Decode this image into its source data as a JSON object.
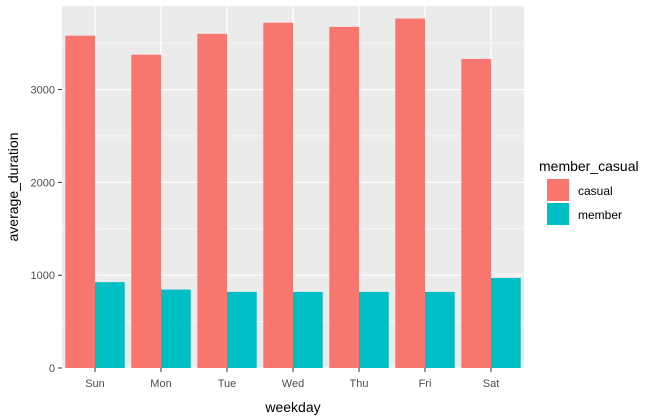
{
  "chart_data": {
    "type": "bar",
    "title": "",
    "xlabel": "weekday",
    "ylabel": "average_duration",
    "categories": [
      "Sun",
      "Mon",
      "Tue",
      "Wed",
      "Thu",
      "Fri",
      "Sat"
    ],
    "series": [
      {
        "name": "casual",
        "color": "#F8766D",
        "values": [
          3580,
          3375,
          3600,
          3720,
          3675,
          3765,
          3330
        ]
      },
      {
        "name": "member",
        "color": "#00BFC4",
        "values": [
          925,
          845,
          820,
          820,
          820,
          820,
          970
        ]
      }
    ],
    "ylim": [
      0,
      3900
    ],
    "yticks": [
      0,
      1000,
      2000,
      3000
    ],
    "grid": true,
    "legend": {
      "title": "member_casual",
      "position": "right"
    },
    "panel_background": "#EBEBEB",
    "grid_color": "#FFFFFF"
  }
}
